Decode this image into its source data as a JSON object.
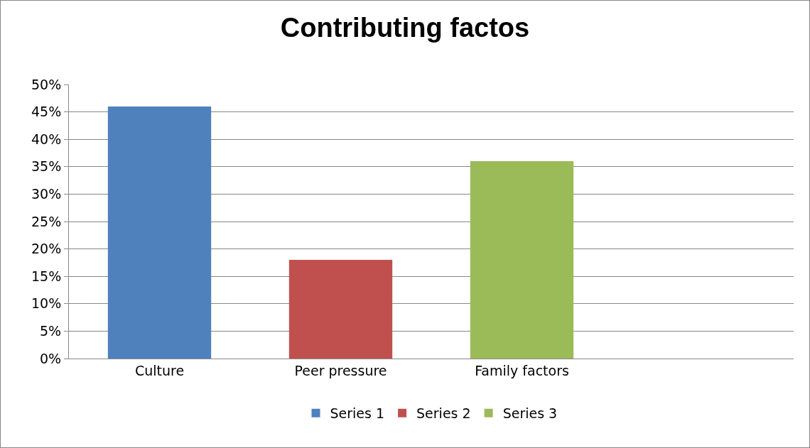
{
  "chart_data": {
    "type": "bar",
    "title": "Contributing factos",
    "categories": [
      "Culture",
      "Peer pressure",
      "Family factors",
      null
    ],
    "series": [
      {
        "name": "Series 1",
        "color": "#4f81bd",
        "values": [
          46,
          null,
          null,
          null
        ]
      },
      {
        "name": "Series 2",
        "color": "#c0504d",
        "values": [
          null,
          18,
          null,
          null
        ]
      },
      {
        "name": "Series 3",
        "color": "#9bbb59",
        "values": [
          null,
          null,
          36,
          null
        ]
      }
    ],
    "ylim": [
      0,
      50
    ],
    "yticks": [
      {
        "value": 0,
        "label": "0%"
      },
      {
        "value": 5,
        "label": "5%"
      },
      {
        "value": 10,
        "label": "10%"
      },
      {
        "value": 15,
        "label": "15%"
      },
      {
        "value": 20,
        "label": "20%"
      },
      {
        "value": 25,
        "label": "25%"
      },
      {
        "value": 30,
        "label": "30%"
      },
      {
        "value": 35,
        "label": "35%"
      },
      {
        "value": 40,
        "label": "40%"
      },
      {
        "value": 45,
        "label": "45%"
      },
      {
        "value": 50,
        "label": "50%"
      }
    ],
    "grid": "y",
    "legend": "bottom"
  }
}
